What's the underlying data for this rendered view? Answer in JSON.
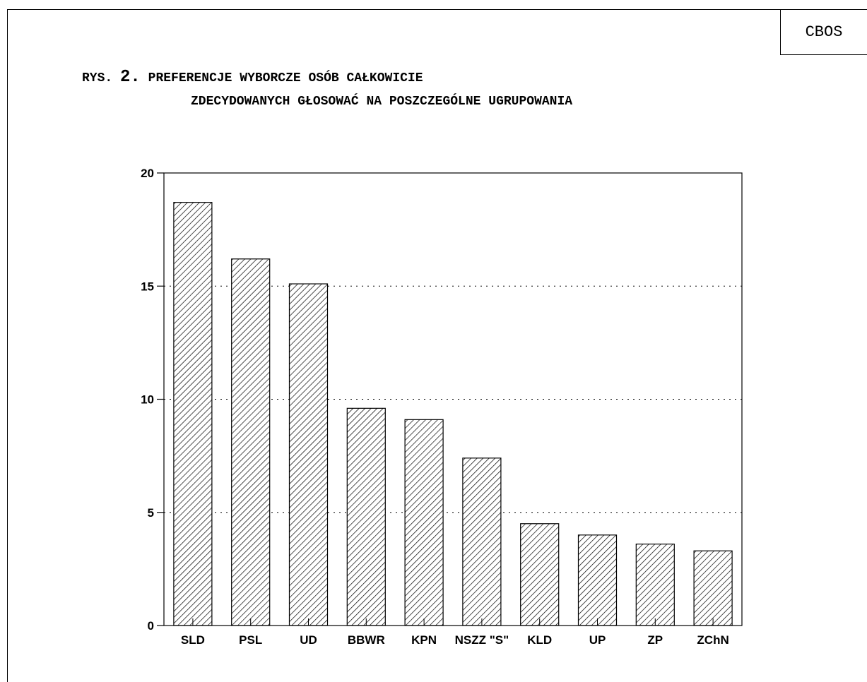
{
  "header": {
    "badge": "CBOS",
    "title_prefix": "RYS.",
    "title_number": "2.",
    "title_line1": "PREFERENCJE WYBORCZE OSÓB CAŁKOWICIE",
    "title_line2": "ZDECYDOWANYCH GŁOSOWAĆ NA POSZCZEGÓLNE UGRUPOWANIA"
  },
  "chart_data": {
    "type": "bar",
    "title": "PREFERENCJE WYBORCZE OSÓB CAŁKOWICIE ZDECYDOWANYCH GŁOSOWAĆ NA POSZCZEGÓLNE UGRUPOWANIA",
    "categories": [
      "SLD",
      "PSL",
      "UD",
      "BBWR",
      "KPN",
      "NSZZ \"S\"",
      "KLD",
      "UP",
      "ZP",
      "ZChN"
    ],
    "values": [
      18.7,
      16.2,
      15.1,
      9.6,
      9.1,
      7.4,
      4.5,
      4.0,
      3.6,
      3.3
    ],
    "xlabel": "",
    "ylabel": "",
    "ylim": [
      0,
      20
    ],
    "yticks": [
      0,
      5,
      10,
      15,
      20
    ],
    "grid": "dotted horizontal",
    "bar_fill": "diagonal hatch",
    "colors": {
      "bar_stroke": "#000000",
      "background": "#ffffff"
    }
  }
}
